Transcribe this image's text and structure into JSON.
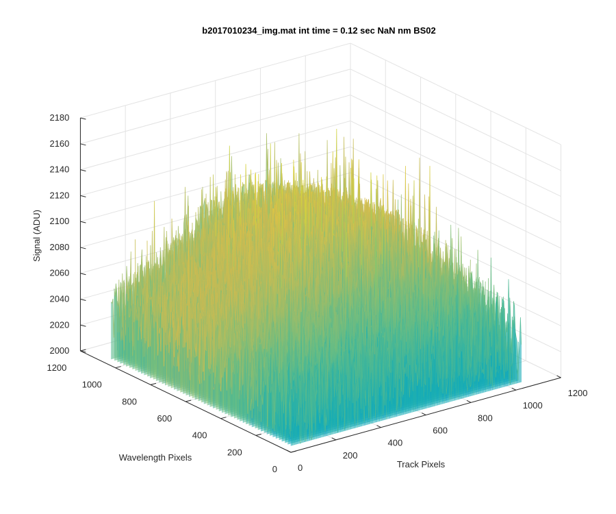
{
  "chart_data": {
    "type": "surface",
    "title": "b2017010234_img.mat int time = 0.12 sec  NaN nm BS02",
    "xlabel": "Track Pixels",
    "ylabel": "Wavelength Pixels",
    "zlabel": "Signal (ADU)",
    "xlim": [
      0,
      1200
    ],
    "ylim": [
      0,
      1200
    ],
    "zlim": [
      2000,
      2180
    ],
    "xticks": [
      "0",
      "200",
      "400",
      "600",
      "800",
      "1000",
      "1200"
    ],
    "yticks": [
      "0",
      "200",
      "400",
      "600",
      "800",
      "1000",
      "1200"
    ],
    "zticks": [
      "2000",
      "2020",
      "2040",
      "2060",
      "2080",
      "2100",
      "2120",
      "2140",
      "2160",
      "2180"
    ],
    "grid": true,
    "colormap": "parula",
    "data_extent": {
      "track_pixels": [
        0,
        1024
      ],
      "wavelength_pixels": [
        0,
        1024
      ]
    },
    "surface": {
      "track_pixels": [
        0,
        128,
        256,
        384,
        512,
        640,
        768,
        896,
        1024
      ],
      "wavelength_pixels": [
        0,
        128,
        256,
        384,
        512,
        640,
        768,
        896,
        1024
      ],
      "signal_mean_adu": [
        [
          2032,
          2034,
          2036,
          2038,
          2040,
          2040,
          2038,
          2036,
          2035
        ],
        [
          2036,
          2040,
          2046,
          2052,
          2055,
          2054,
          2050,
          2046,
          2042
        ],
        [
          2040,
          2048,
          2058,
          2068,
          2074,
          2072,
          2066,
          2058,
          2050
        ],
        [
          2044,
          2054,
          2068,
          2082,
          2090,
          2088,
          2080,
          2068,
          2056
        ],
        [
          2046,
          2058,
          2074,
          2090,
          2100,
          2098,
          2088,
          2074,
          2060
        ],
        [
          2046,
          2060,
          2078,
          2094,
          2104,
          2102,
          2092,
          2078,
          2062
        ],
        [
          2044,
          2058,
          2076,
          2092,
          2102,
          2100,
          2090,
          2076,
          2060
        ],
        [
          2042,
          2054,
          2070,
          2086,
          2094,
          2092,
          2084,
          2070,
          2056
        ],
        [
          2040,
          2050,
          2064,
          2078,
          2086,
          2084,
          2076,
          2064,
          2052
        ]
      ],
      "noise_range_adu": [
        2005,
        2150
      ]
    }
  }
}
